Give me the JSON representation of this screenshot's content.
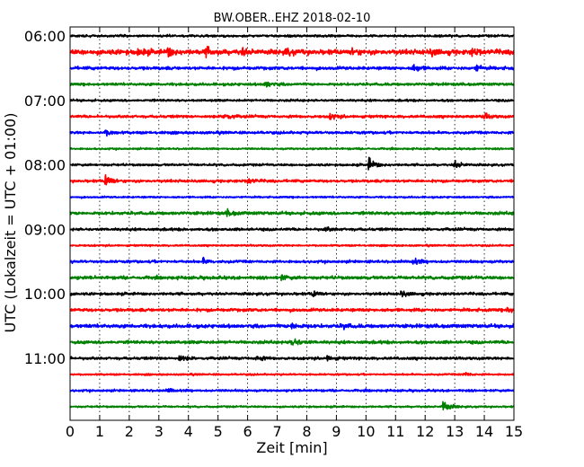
{
  "chart_data": {
    "type": "line",
    "title": "BW.OBER..EHZ 2018-02-10",
    "xlabel": "Zeit  [min]",
    "ylabel": "UTC (Lokalzeit = UTC + 01:00)",
    "xlim": [
      0,
      15
    ],
    "x_ticks": [
      0,
      1,
      2,
      3,
      4,
      5,
      6,
      7,
      8,
      9,
      10,
      11,
      12,
      13,
      14,
      15
    ],
    "x_tick_labels": [
      "0",
      "1",
      "2",
      "3",
      "4",
      "5",
      "6",
      "7",
      "8",
      "9",
      "10",
      "11",
      "12",
      "13",
      "14",
      "15"
    ],
    "y_tick_labels": [
      "06:00",
      "07:00",
      "08:00",
      "09:00",
      "10:00",
      "11:00"
    ],
    "y_tick_rows": [
      0,
      4,
      8,
      12,
      16,
      20
    ],
    "grid": "vertical dotted",
    "series": [
      {
        "start": "06:00",
        "color": "#000000",
        "amplitude": 0.25,
        "events": []
      },
      {
        "start": "06:15",
        "color": "#ff0000",
        "amplitude": 0.55,
        "events": [
          [
            2.3,
            0.8
          ],
          [
            3.3,
            1.0
          ],
          [
            4.6,
            0.8
          ],
          [
            5.8,
            0.7
          ],
          [
            7.3,
            0.7
          ],
          [
            9.5,
            0.7
          ],
          [
            12.2,
            0.7
          ],
          [
            13.6,
            0.7
          ]
        ]
      },
      {
        "start": "06:30",
        "color": "#0000ff",
        "amplitude": 0.35,
        "events": [
          [
            11.6,
            0.9
          ],
          [
            13.7,
            0.8
          ]
        ]
      },
      {
        "start": "06:45",
        "color": "#008000",
        "amplitude": 0.3,
        "events": [
          [
            6.6,
            0.8
          ]
        ]
      },
      {
        "start": "07:00",
        "color": "#000000",
        "amplitude": 0.25,
        "events": []
      },
      {
        "start": "07:15",
        "color": "#ff0000",
        "amplitude": 0.3,
        "events": [
          [
            5.2,
            1.0
          ],
          [
            8.8,
            0.7
          ],
          [
            14.0,
            0.6
          ]
        ]
      },
      {
        "start": "07:30",
        "color": "#0000ff",
        "amplitude": 0.3,
        "events": [
          [
            1.2,
            0.6
          ]
        ]
      },
      {
        "start": "07:45",
        "color": "#008000",
        "amplitude": 0.2,
        "events": []
      },
      {
        "start": "08:00",
        "color": "#000000",
        "amplitude": 0.25,
        "events": [
          [
            10.1,
            1.5
          ],
          [
            13.0,
            1.0
          ]
        ]
      },
      {
        "start": "08:15",
        "color": "#ff0000",
        "amplitude": 0.3,
        "events": [
          [
            1.2,
            1.6
          ],
          [
            6.0,
            0.7
          ]
        ]
      },
      {
        "start": "08:30",
        "color": "#0000ff",
        "amplitude": 0.2,
        "events": []
      },
      {
        "start": "08:45",
        "color": "#008000",
        "amplitude": 0.35,
        "events": [
          [
            5.3,
            0.7
          ]
        ]
      },
      {
        "start": "09:00",
        "color": "#000000",
        "amplitude": 0.3,
        "events": [
          [
            8.6,
            0.5
          ]
        ]
      },
      {
        "start": "09:15",
        "color": "#ff0000",
        "amplitude": 0.2,
        "events": []
      },
      {
        "start": "09:30",
        "color": "#0000ff",
        "amplitude": 0.3,
        "events": [
          [
            4.5,
            0.6
          ],
          [
            11.6,
            0.8
          ]
        ]
      },
      {
        "start": "09:45",
        "color": "#008000",
        "amplitude": 0.35,
        "events": [
          [
            7.1,
            0.6
          ]
        ]
      },
      {
        "start": "10:00",
        "color": "#000000",
        "amplitude": 0.3,
        "events": [
          [
            8.2,
            0.8
          ],
          [
            11.2,
            0.7
          ]
        ]
      },
      {
        "start": "10:15",
        "color": "#ff0000",
        "amplitude": 0.35,
        "events": [
          [
            14.8,
            0.7
          ]
        ]
      },
      {
        "start": "10:30",
        "color": "#0000ff",
        "amplitude": 0.4,
        "events": [
          [
            7.5,
            0.9
          ],
          [
            9.2,
            0.6
          ]
        ]
      },
      {
        "start": "10:45",
        "color": "#008000",
        "amplitude": 0.35,
        "events": [
          [
            7.5,
            1.3
          ]
        ]
      },
      {
        "start": "11:00",
        "color": "#000000",
        "amplitude": 0.3,
        "events": [
          [
            3.7,
            0.8
          ],
          [
            6.3,
            0.6
          ],
          [
            8.7,
            0.6
          ]
        ]
      },
      {
        "start": "11:15",
        "color": "#ff0000",
        "amplitude": 0.2,
        "events": [
          [
            13.3,
            0.5
          ]
        ]
      },
      {
        "start": "11:30",
        "color": "#0000ff",
        "amplitude": 0.25,
        "events": [
          [
            3.3,
            0.5
          ]
        ]
      },
      {
        "start": "11:45",
        "color": "#008000",
        "amplitude": 0.2,
        "events": [
          [
            12.6,
            1.6
          ]
        ]
      }
    ]
  }
}
